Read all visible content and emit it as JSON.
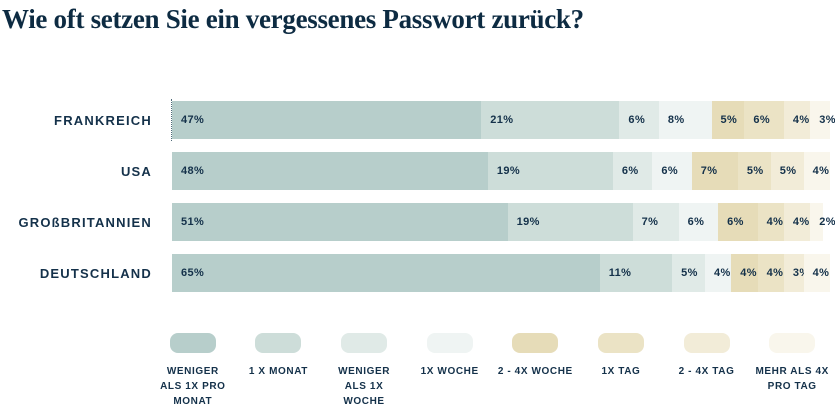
{
  "title": "Wie oft setzen Sie ein vergessenes Passwort zurück?",
  "colors": {
    "background": "#ffffff",
    "title_text": "#0d2b42",
    "label_text": "#14314a"
  },
  "chart_data": {
    "type": "bar",
    "stacked": true,
    "orientation": "horizontal",
    "title": "Wie oft setzen Sie ein vergessenes Passwort zurück?",
    "categories": [
      "Frankreich",
      "USA",
      "Großbritannien",
      "Deutschland"
    ],
    "categories_display": [
      "FRANKREICH",
      "USA",
      "GROßBRITANNIEN",
      "DEUTSCHLAND"
    ],
    "series": [
      {
        "name": "Weniger als 1x pro Monat",
        "color": "#b7cecb",
        "values": [
          47,
          48,
          51,
          65
        ]
      },
      {
        "name": "1 x Monat",
        "color": "#cdddd9",
        "values": [
          21,
          19,
          19,
          11
        ]
      },
      {
        "name": "Weniger als 1x Woche",
        "color": "#e0eae7",
        "values": [
          6,
          6,
          7,
          5
        ]
      },
      {
        "name": "1x Woche",
        "color": "#eff4f3",
        "values": [
          8,
          6,
          6,
          4
        ]
      },
      {
        "name": "2 - 4x Woche",
        "color": "#e6dcb8",
        "values": [
          5,
          7,
          6,
          4
        ]
      },
      {
        "name": "1x Tag",
        "color": "#ebe3c5",
        "values": [
          6,
          5,
          4,
          4
        ]
      },
      {
        "name": "2 - 4x Tag",
        "color": "#f2ecd8",
        "values": [
          4,
          5,
          4,
          3
        ]
      },
      {
        "name": "Mehr als 4x pro Tag",
        "color": "#f9f6ec",
        "values": [
          3,
          4,
          2,
          4
        ]
      }
    ],
    "value_suffix": "%",
    "xlim": [
      0,
      100
    ],
    "grid": false,
    "legend_position": "bottom"
  },
  "legend": {
    "items": [
      {
        "lines": [
          "WENIGER",
          "ALS 1X PRO",
          "MONAT"
        ]
      },
      {
        "lines": [
          "1 X MONAT"
        ]
      },
      {
        "lines": [
          "WENIGER",
          "ALS 1X",
          "WOCHE"
        ]
      },
      {
        "lines": [
          "1X WOCHE"
        ]
      },
      {
        "lines": [
          "2 - 4X WOCHE"
        ]
      },
      {
        "lines": [
          "1X TAG"
        ]
      },
      {
        "lines": [
          "2 - 4X TAG"
        ]
      },
      {
        "lines": [
          "MEHR ALS 4X",
          "PRO TAG"
        ]
      }
    ]
  }
}
